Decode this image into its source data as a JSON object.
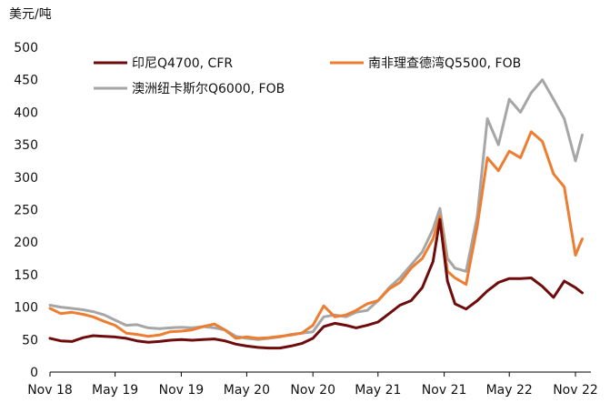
{
  "chart_data": {
    "type": "line",
    "y_unit_label": "美元/吨",
    "ylim": [
      0,
      500
    ],
    "y_ticks": [
      0,
      50,
      100,
      150,
      200,
      250,
      300,
      350,
      400,
      450,
      500
    ],
    "x_tick_labels": [
      "Nov 18",
      "May 19",
      "Nov 19",
      "May 20",
      "Nov 20",
      "May 21",
      "Nov 21",
      "May 22",
      "Nov 22"
    ],
    "x_tick_dates": [
      "2018-11-01",
      "2019-05-01",
      "2019-11-01",
      "2020-05-01",
      "2020-11-01",
      "2021-05-01",
      "2021-11-01",
      "2022-05-01",
      "2022-11-01"
    ],
    "x_range": [
      "2018-11-01",
      "2022-11-20"
    ],
    "grid": false,
    "legend_position": "top",
    "series": [
      {
        "name": "印尼Q4700, CFR",
        "color": "#6e0c0c",
        "points": [
          [
            "2018-11-01",
            52
          ],
          [
            "2018-12-01",
            48
          ],
          [
            "2019-01-01",
            47
          ],
          [
            "2019-02-01",
            53
          ],
          [
            "2019-03-01",
            56
          ],
          [
            "2019-04-01",
            55
          ],
          [
            "2019-05-01",
            54
          ],
          [
            "2019-06-01",
            52
          ],
          [
            "2019-07-01",
            48
          ],
          [
            "2019-08-01",
            46
          ],
          [
            "2019-09-01",
            47
          ],
          [
            "2019-10-01",
            49
          ],
          [
            "2019-11-01",
            50
          ],
          [
            "2019-12-01",
            49
          ],
          [
            "2020-01-01",
            50
          ],
          [
            "2020-02-01",
            51
          ],
          [
            "2020-03-01",
            48
          ],
          [
            "2020-04-01",
            43
          ],
          [
            "2020-05-01",
            40
          ],
          [
            "2020-06-01",
            38
          ],
          [
            "2020-07-01",
            37
          ],
          [
            "2020-08-01",
            37
          ],
          [
            "2020-09-01",
            40
          ],
          [
            "2020-10-01",
            44
          ],
          [
            "2020-11-01",
            52
          ],
          [
            "2020-12-01",
            70
          ],
          [
            "2021-01-01",
            75
          ],
          [
            "2021-02-01",
            72
          ],
          [
            "2021-03-01",
            68
          ],
          [
            "2021-04-01",
            72
          ],
          [
            "2021-05-01",
            77
          ],
          [
            "2021-06-01",
            90
          ],
          [
            "2021-07-01",
            103
          ],
          [
            "2021-08-01",
            110
          ],
          [
            "2021-09-01",
            130
          ],
          [
            "2021-10-01",
            170
          ],
          [
            "2021-10-20",
            235
          ],
          [
            "2021-11-10",
            140
          ],
          [
            "2021-12-01",
            105
          ],
          [
            "2022-01-01",
            97
          ],
          [
            "2022-02-01",
            110
          ],
          [
            "2022-03-01",
            125
          ],
          [
            "2022-04-01",
            138
          ],
          [
            "2022-05-01",
            144
          ],
          [
            "2022-06-01",
            144
          ],
          [
            "2022-07-01",
            145
          ],
          [
            "2022-08-01",
            132
          ],
          [
            "2022-09-01",
            115
          ],
          [
            "2022-10-01",
            140
          ],
          [
            "2022-11-01",
            130
          ],
          [
            "2022-11-20",
            122
          ]
        ]
      },
      {
        "name": "南非理查德湾Q5500, FOB",
        "color": "#ed7d31",
        "points": [
          [
            "2018-11-01",
            98
          ],
          [
            "2018-12-01",
            90
          ],
          [
            "2019-01-01",
            92
          ],
          [
            "2019-02-01",
            89
          ],
          [
            "2019-03-01",
            85
          ],
          [
            "2019-04-01",
            78
          ],
          [
            "2019-05-01",
            72
          ],
          [
            "2019-06-01",
            60
          ],
          [
            "2019-07-01",
            58
          ],
          [
            "2019-08-01",
            55
          ],
          [
            "2019-09-01",
            57
          ],
          [
            "2019-10-01",
            62
          ],
          [
            "2019-11-01",
            63
          ],
          [
            "2019-12-01",
            65
          ],
          [
            "2020-01-01",
            70
          ],
          [
            "2020-02-01",
            74
          ],
          [
            "2020-03-01",
            65
          ],
          [
            "2020-04-01",
            52
          ],
          [
            "2020-05-01",
            54
          ],
          [
            "2020-06-01",
            52
          ],
          [
            "2020-07-01",
            53
          ],
          [
            "2020-08-01",
            55
          ],
          [
            "2020-09-01",
            57
          ],
          [
            "2020-10-01",
            60
          ],
          [
            "2020-11-01",
            72
          ],
          [
            "2020-12-01",
            102
          ],
          [
            "2021-01-01",
            85
          ],
          [
            "2021-02-01",
            88
          ],
          [
            "2021-03-01",
            95
          ],
          [
            "2021-04-01",
            105
          ],
          [
            "2021-05-01",
            110
          ],
          [
            "2021-06-01",
            128
          ],
          [
            "2021-07-01",
            138
          ],
          [
            "2021-08-01",
            160
          ],
          [
            "2021-09-01",
            175
          ],
          [
            "2021-10-01",
            205
          ],
          [
            "2021-10-20",
            240
          ],
          [
            "2021-11-10",
            155
          ],
          [
            "2021-12-01",
            145
          ],
          [
            "2022-01-01",
            135
          ],
          [
            "2022-02-01",
            225
          ],
          [
            "2022-03-01",
            330
          ],
          [
            "2022-04-01",
            310
          ],
          [
            "2022-05-01",
            340
          ],
          [
            "2022-06-01",
            330
          ],
          [
            "2022-07-01",
            370
          ],
          [
            "2022-08-01",
            355
          ],
          [
            "2022-09-01",
            305
          ],
          [
            "2022-10-01",
            285
          ],
          [
            "2022-11-01",
            180
          ],
          [
            "2022-11-20",
            205
          ]
        ]
      },
      {
        "name": "澳洲纽卡斯尔Q6000, FOB",
        "color": "#a6a6a6",
        "points": [
          [
            "2018-11-01",
            103
          ],
          [
            "2018-12-01",
            100
          ],
          [
            "2019-01-01",
            98
          ],
          [
            "2019-02-01",
            96
          ],
          [
            "2019-03-01",
            93
          ],
          [
            "2019-04-01",
            88
          ],
          [
            "2019-05-01",
            80
          ],
          [
            "2019-06-01",
            72
          ],
          [
            "2019-07-01",
            73
          ],
          [
            "2019-08-01",
            68
          ],
          [
            "2019-09-01",
            67
          ],
          [
            "2019-10-01",
            68
          ],
          [
            "2019-11-01",
            69
          ],
          [
            "2019-12-01",
            68
          ],
          [
            "2020-01-01",
            70
          ],
          [
            "2020-02-01",
            68
          ],
          [
            "2020-03-01",
            65
          ],
          [
            "2020-04-01",
            55
          ],
          [
            "2020-05-01",
            52
          ],
          [
            "2020-06-01",
            50
          ],
          [
            "2020-07-01",
            52
          ],
          [
            "2020-08-01",
            54
          ],
          [
            "2020-09-01",
            58
          ],
          [
            "2020-10-01",
            60
          ],
          [
            "2020-11-01",
            62
          ],
          [
            "2020-12-01",
            85
          ],
          [
            "2021-01-01",
            88
          ],
          [
            "2021-02-01",
            85
          ],
          [
            "2021-03-01",
            92
          ],
          [
            "2021-04-01",
            95
          ],
          [
            "2021-05-01",
            110
          ],
          [
            "2021-06-01",
            130
          ],
          [
            "2021-07-01",
            145
          ],
          [
            "2021-08-01",
            165
          ],
          [
            "2021-09-01",
            185
          ],
          [
            "2021-10-01",
            220
          ],
          [
            "2021-10-20",
            252
          ],
          [
            "2021-11-10",
            175
          ],
          [
            "2021-12-01",
            160
          ],
          [
            "2022-01-01",
            155
          ],
          [
            "2022-02-01",
            240
          ],
          [
            "2022-03-01",
            390
          ],
          [
            "2022-04-01",
            350
          ],
          [
            "2022-05-01",
            420
          ],
          [
            "2022-06-01",
            400
          ],
          [
            "2022-07-01",
            430
          ],
          [
            "2022-08-01",
            450
          ],
          [
            "2022-09-01",
            420
          ],
          [
            "2022-10-01",
            390
          ],
          [
            "2022-11-01",
            325
          ],
          [
            "2022-11-20",
            365
          ]
        ]
      }
    ]
  }
}
